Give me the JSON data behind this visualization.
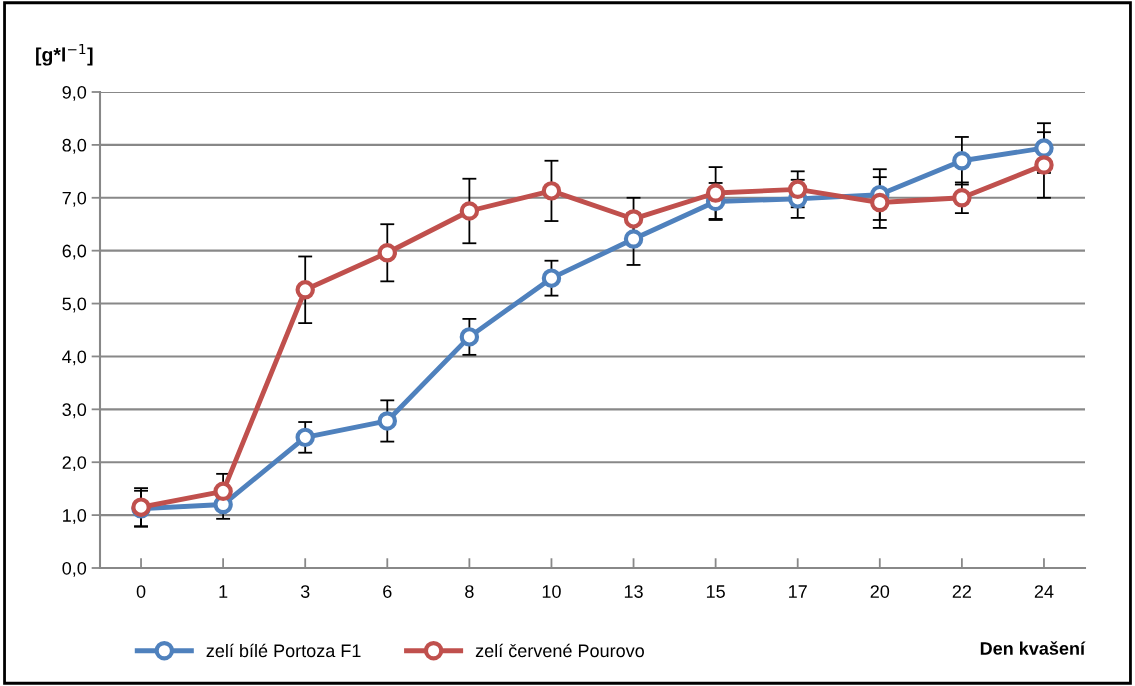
{
  "chart_data": {
    "type": "line",
    "ylabel": "[g*l$^{−1}$]",
    "xlabel": "Den kvašení",
    "categories": [
      "0",
      "1",
      "3",
      "6",
      "8",
      "10",
      "13",
      "15",
      "17",
      "20",
      "22",
      "24"
    ],
    "series": [
      {
        "name": "zelí bílé Portoza F1",
        "color": "#4f81bd",
        "values": [
          1.12,
          1.2,
          2.47,
          2.78,
          4.37,
          5.48,
          6.22,
          6.93,
          6.98,
          7.06,
          7.7,
          7.94
        ],
        "errors": [
          0.34,
          0.27,
          0.29,
          0.39,
          0.34,
          0.33,
          0.49,
          0.35,
          0.36,
          0.48,
          0.45,
          0.47
        ]
      },
      {
        "name": "zelí červené Pourovo",
        "color": "#c0504d",
        "values": [
          1.15,
          1.45,
          5.26,
          5.96,
          6.75,
          7.13,
          6.6,
          7.09,
          7.16,
          6.91,
          7.0,
          7.62
        ],
        "errors": [
          0.36,
          0.33,
          0.63,
          0.54,
          0.61,
          0.57,
          0.4,
          0.49,
          0.34,
          0.48,
          0.29,
          0.62
        ]
      }
    ],
    "ylim": [
      0,
      9
    ],
    "yticks": [
      {
        "value": 0,
        "label": "0,0"
      },
      {
        "value": 1,
        "label": "1,0"
      },
      {
        "value": 2,
        "label": "2,0"
      },
      {
        "value": 3,
        "label": "3,0"
      },
      {
        "value": 4,
        "label": "4,0"
      },
      {
        "value": 5,
        "label": "5,0"
      },
      {
        "value": 6,
        "label": "6,0"
      },
      {
        "value": 7,
        "label": "7,0"
      },
      {
        "value": 8,
        "label": "8,0"
      },
      {
        "value": 9,
        "label": "9,0"
      }
    ],
    "grid": "y",
    "legend": "bottom",
    "marker": "circle",
    "line_style": "solid"
  }
}
